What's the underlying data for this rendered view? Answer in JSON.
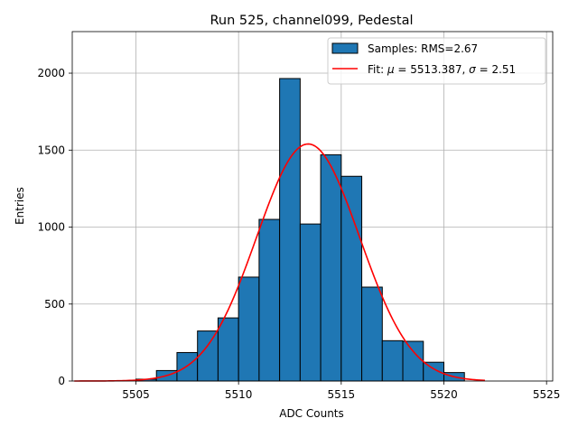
{
  "chart_data": {
    "type": "bar",
    "title": "Run 525, channel099, Pedestal",
    "xlabel": "ADC Counts",
    "ylabel": "Entries",
    "xlim": [
      5501.9,
      5525.3
    ],
    "ylim": [
      0,
      2270
    ],
    "grid": true,
    "legend_position": "top-right",
    "xticks": [
      5505,
      5510,
      5515,
      5520,
      5525
    ],
    "yticks": [
      0,
      500,
      1000,
      1500,
      2000
    ],
    "histogram": {
      "label": "Samples: RMS=2.67",
      "color": "#1f77b4",
      "edgecolor": "#000000",
      "bins": [
        {
          "x0": 5505,
          "x1": 5506,
          "value": 12
        },
        {
          "x0": 5506,
          "x1": 5507,
          "value": 68
        },
        {
          "x0": 5507,
          "x1": 5508,
          "value": 185
        },
        {
          "x0": 5508,
          "x1": 5509,
          "value": 325
        },
        {
          "x0": 5509,
          "x1": 5510,
          "value": 410
        },
        {
          "x0": 5510,
          "x1": 5511,
          "value": 675
        },
        {
          "x0": 5511,
          "x1": 5512,
          "value": 1050
        },
        {
          "x0": 5512,
          "x1": 5513,
          "value": 1965
        },
        {
          "x0": 5513,
          "x1": 5514,
          "value": 1020
        },
        {
          "x0": 5514,
          "x1": 5515,
          "value": 1470
        },
        {
          "x0": 5515,
          "x1": 5516,
          "value": 1330
        },
        {
          "x0": 5516,
          "x1": 5517,
          "value": 610
        },
        {
          "x0": 5517,
          "x1": 5518,
          "value": 262
        },
        {
          "x0": 5518,
          "x1": 5519,
          "value": 258
        },
        {
          "x0": 5519,
          "x1": 5520,
          "value": 122
        },
        {
          "x0": 5520,
          "x1": 5521,
          "value": 55
        }
      ]
    },
    "fit": {
      "label_prefix": "Fit: ",
      "mu_symbol": "μ",
      "mu_text": " = 5513.387, ",
      "sigma_symbol": "σ",
      "sigma_text": " = 2.51",
      "color": "#ff0000",
      "mu": 5513.387,
      "sigma": 2.51,
      "amplitude": 1540,
      "x_range": [
        5502,
        5522
      ]
    }
  }
}
